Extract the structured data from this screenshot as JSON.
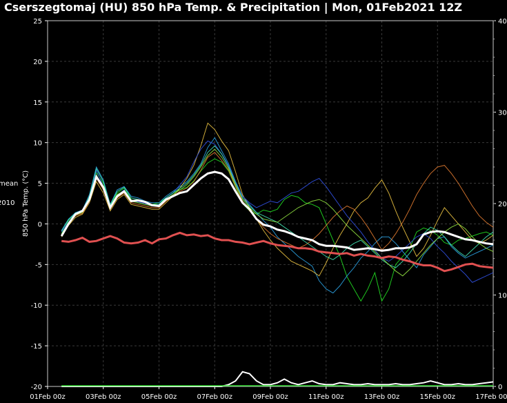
{
  "title": "Cserszegtomaj  (HU)  850 hPa Temp. & Precipitation | Mon, 01Feb2021 12Z",
  "chart_data": {
    "type": "line",
    "title": "Cserszegtomaj  (HU)  850 hPa Temp. & Precipitation | Mon, 01Feb2021 12Z",
    "ylabel": "850 hPa Temp. (°C)",
    "y2label": "",
    "legend_fragments": [
      "mean",
      "2010"
    ],
    "ylim": [
      -20,
      25
    ],
    "y2lim": [
      0,
      40
    ],
    "yticks": [
      25,
      20,
      15,
      10,
      5,
      0,
      -5,
      -10,
      -15,
      -20
    ],
    "y2ticks": [
      40,
      30,
      20,
      10,
      0
    ],
    "xlim": [
      0,
      16
    ],
    "xticks": [
      "01Feb 00z",
      "03Feb 00z",
      "05Feb 00z",
      "07Feb 00z",
      "09Feb 00z",
      "11Feb 00z",
      "13Feb 00z",
      "15Feb 00z",
      "17Feb 00z"
    ],
    "grid": true,
    "x_days": [
      0.5,
      0.75,
      1,
      1.25,
      1.5,
      1.75,
      2,
      2.25,
      2.5,
      2.75,
      3,
      3.25,
      3.5,
      3.75,
      4,
      4.25,
      4.5,
      4.75,
      5,
      5.25,
      5.5,
      5.75,
      6,
      6.25,
      6.5,
      6.75,
      7,
      7.25,
      7.5,
      7.75,
      8,
      8.25,
      8.5,
      8.75,
      9,
      9.25,
      9.5,
      9.75,
      10,
      10.25,
      10.5,
      10.75,
      11,
      11.25,
      11.5,
      11.75,
      12,
      12.25,
      12.5,
      12.75,
      13,
      13.25,
      13.5,
      13.75,
      14,
      14.25,
      14.5,
      14.75,
      15,
      15.25,
      15.5,
      15.75,
      16
    ],
    "series": [
      {
        "role": "ensemble-mean",
        "color": "#ffffff",
        "values": [
          -1.5,
          0,
          1.2,
          1.6,
          3,
          5.8,
          4.5,
          2,
          3.4,
          4,
          2.8,
          2.9,
          2.7,
          2.3,
          2.2,
          3,
          3.4,
          3.8,
          4,
          4.8,
          5.6,
          6.2,
          6.4,
          6.2,
          5.5,
          4,
          2.6,
          1.8,
          0.6,
          -0.1,
          -0.3,
          -0.7,
          -0.9,
          -1.2,
          -1.6,
          -1.8,
          -2,
          -2.5,
          -2.7,
          -2.7,
          -2.8,
          -2.9,
          -3.2,
          -3.1,
          -3,
          -3.1,
          -3.3,
          -3.2,
          -3,
          -3,
          -2.9,
          -2.5,
          -1.3,
          -1,
          -0.9,
          -1,
          -1.3,
          -1.6,
          -1.9,
          -2,
          -2.2,
          -2.4,
          -2.5
        ]
      },
      {
        "role": "climatology",
        "color": "#e05050",
        "values": [
          -2.1,
          -2.2,
          -2,
          -1.7,
          -2.2,
          -2.1,
          -1.8,
          -1.5,
          -1.8,
          -2.3,
          -2.4,
          -2.3,
          -2,
          -2.4,
          -1.9,
          -1.8,
          -1.4,
          -1.1,
          -1.4,
          -1.3,
          -1.5,
          -1.4,
          -1.8,
          -2,
          -2,
          -2.2,
          -2.3,
          -2.5,
          -2.3,
          -2.1,
          -2.4,
          -2.6,
          -2.7,
          -2.8,
          -3,
          -3,
          -3.1,
          -3.4,
          -3.5,
          -3.6,
          -3.7,
          -3.6,
          -3.9,
          -3.7,
          -3.9,
          -4,
          -4.2,
          -4,
          -4.1,
          -4.4,
          -4.6,
          -4.9,
          -5.1,
          -5.1,
          -5.4,
          -5.8,
          -5.6,
          -5.3,
          -5,
          -4.9,
          -5.2,
          -5.3,
          -5.4
        ]
      },
      {
        "role": "member",
        "color": "#22dd22",
        "values": [
          -1.2,
          0.4,
          1.4,
          1.5,
          3.2,
          6.3,
          5,
          2.2,
          3.8,
          4.4,
          3,
          2.6,
          2.4,
          2.4,
          2.6,
          3.2,
          3.8,
          4.2,
          4.5,
          5.3,
          6.5,
          7.5,
          8,
          7.6,
          6.5,
          4.5,
          2.5,
          1.6,
          1.2,
          1.7,
          1.5,
          1.8,
          3,
          3.5,
          3.3,
          2.6,
          2.4,
          2,
          0,
          -2,
          -4,
          -6.5,
          -8,
          -9.5,
          -8,
          -6,
          -9.5,
          -8,
          -5,
          -4,
          -3,
          -1,
          -0.5,
          -0.8,
          -1.4,
          -2.3,
          -2.6,
          -2,
          -1.8,
          -1.5,
          -1.2,
          -1,
          -1.4
        ]
      },
      {
        "role": "member",
        "color": "#2aa0e0",
        "values": [
          -0.8,
          0.6,
          1.4,
          1.7,
          3.6,
          7,
          5.4,
          2.4,
          4.2,
          4.6,
          3.4,
          3.2,
          2.8,
          2.6,
          2.6,
          3.4,
          4,
          4.6,
          5.2,
          6.2,
          7.4,
          9.4,
          10.6,
          9,
          7.4,
          5.2,
          3.4,
          2.4,
          1.4,
          0.4,
          -0.4,
          -1.6,
          -2.4,
          -3.2,
          -4,
          -4.6,
          -5.2,
          -7,
          -8,
          -8.5,
          -7.6,
          -6.4,
          -5.4,
          -4.2,
          -3.4,
          -2.4,
          -1.6,
          -1.6,
          -2.4,
          -3.4,
          -4.4,
          -5.4,
          -3.8,
          -2.8,
          -1.8,
          -1.6,
          -2.8,
          -3.6,
          -4.2,
          -3.8,
          -3.4,
          -3,
          -2.6
        ]
      },
      {
        "role": "member",
        "color": "#e8c040",
        "values": [
          -1.6,
          -0.2,
          0.8,
          1.2,
          2.6,
          5.2,
          3.8,
          1.6,
          3,
          3.6,
          2.4,
          2.2,
          2,
          1.8,
          1.8,
          2.6,
          3.4,
          4.4,
          5.6,
          7.2,
          9.6,
          12.4,
          11.6,
          10.2,
          9,
          6.4,
          3.6,
          2,
          0.6,
          -0.8,
          -2,
          -3,
          -3.8,
          -4.6,
          -5,
          -5.4,
          -5.8,
          -6.4,
          -4.8,
          -3,
          -1.4,
          0,
          1.6,
          2.6,
          3.2,
          4.4,
          5.4,
          3.8,
          1.6,
          -0.4,
          -2.2,
          -4,
          -3,
          -1.4,
          0.4,
          2,
          1,
          0,
          -1,
          -2,
          -2.4,
          -2,
          -1.4
        ]
      },
      {
        "role": "member",
        "color": "#3050e0",
        "values": [
          -1,
          0.2,
          1.2,
          1.5,
          3.1,
          6.6,
          4.6,
          2,
          3.5,
          4.2,
          2.9,
          2.7,
          2.5,
          2.2,
          2.4,
          3.2,
          3.8,
          4.8,
          5.8,
          7.6,
          9.2,
          10.2,
          9.8,
          8.6,
          7.2,
          5,
          3.4,
          2.6,
          2,
          2.4,
          2.8,
          2.6,
          3.2,
          3.8,
          4,
          4.6,
          5.2,
          5.6,
          4.6,
          3.4,
          2.2,
          1,
          0,
          -1,
          -2.2,
          -3.2,
          -4.2,
          -4.6,
          -4,
          -3.2,
          -2.4,
          -1.6,
          -1.2,
          -1.8,
          -2.8,
          -3.6,
          -4.6,
          -5.4,
          -6.2,
          -7.2,
          -6.8,
          -6.4,
          -6
        ]
      },
      {
        "role": "member",
        "color": "#e07a30",
        "values": [
          -1.4,
          0,
          1,
          1.3,
          2.8,
          5.6,
          4.2,
          1.8,
          3.2,
          3.8,
          2.6,
          2.4,
          2.2,
          2,
          2,
          2.8,
          3.4,
          4,
          4.4,
          5.2,
          6.6,
          8.2,
          8.8,
          7.8,
          6.6,
          4.6,
          2.8,
          1.6,
          0.6,
          -0.4,
          -1.2,
          -1.8,
          -2.2,
          -2.6,
          -3,
          -2.6,
          -2,
          -1.2,
          -0.2,
          0.8,
          1.6,
          2.2,
          1.8,
          0.8,
          -0.4,
          -1.8,
          -3.2,
          -2.4,
          -1.2,
          0.2,
          1.8,
          3.6,
          5,
          6.2,
          7,
          7.2,
          6.2,
          5,
          3.6,
          2.2,
          1,
          0.2,
          -0.4
        ]
      },
      {
        "role": "member",
        "color": "#40e0b0",
        "values": [
          -0.9,
          0.5,
          1.3,
          1.6,
          3.4,
          6.8,
          5.2,
          2.3,
          4,
          4.5,
          3.2,
          3,
          2.7,
          2.4,
          2.4,
          3.2,
          3.8,
          4.4,
          5,
          6,
          7.2,
          8.8,
          9.6,
          8.6,
          7,
          5,
          3.2,
          2.2,
          1.4,
          1,
          0.6,
          0.2,
          -0.4,
          -1,
          -1.6,
          -2.2,
          -2.8,
          -3.4,
          -4,
          -4.4,
          -3.8,
          -3,
          -2.4,
          -2,
          -2.8,
          -3.6,
          -4.4,
          -5,
          -5.4,
          -4.6,
          -3.6,
          -2.4,
          -1.2,
          -0.4,
          -0.8,
          -1.6,
          -2.6,
          -3.4,
          -4,
          -3.2,
          -2.4,
          -1.6,
          -1
        ]
      },
      {
        "role": "member",
        "color": "#90e040",
        "values": [
          -1.3,
          0.1,
          1.1,
          1.4,
          3,
          6,
          4.4,
          2.1,
          3.6,
          4.1,
          2.8,
          2.6,
          2.4,
          2.2,
          2.2,
          3,
          3.6,
          4.2,
          4.8,
          5.8,
          7,
          8.4,
          9.2,
          8.2,
          6.8,
          4.8,
          3,
          2,
          1.2,
          0.6,
          0.4,
          0.2,
          0.8,
          1.4,
          2,
          2.4,
          2.8,
          3,
          2.6,
          1.8,
          0.8,
          -0.2,
          -1,
          -1.8,
          -2.6,
          -3.4,
          -4.2,
          -5,
          -5.8,
          -6.4,
          -5.6,
          -4.6,
          -3.6,
          -2.6,
          -1.8,
          -1,
          -0.4,
          0,
          -0.6,
          -1.6,
          -2.4,
          -3,
          -3.4
        ]
      }
    ],
    "precip_mean_values": [
      0,
      0,
      0,
      0,
      0,
      0,
      0,
      0,
      0,
      0,
      0,
      0,
      0,
      0,
      0,
      0,
      0,
      0,
      0,
      0,
      0,
      0,
      0,
      0,
      0.2,
      0.6,
      1.6,
      1.4,
      0.6,
      0.2,
      0.2,
      0.4,
      0.8,
      0.4,
      0.2,
      0.4,
      0.6,
      0.3,
      0.2,
      0.2,
      0.4,
      0.3,
      0.2,
      0.2,
      0.3,
      0.2,
      0.2,
      0.2,
      0.3,
      0.2,
      0.2,
      0.3,
      0.4,
      0.6,
      0.4,
      0.2,
      0.2,
      0.3,
      0.2,
      0.2,
      0.3,
      0.4,
      0.5
    ]
  }
}
